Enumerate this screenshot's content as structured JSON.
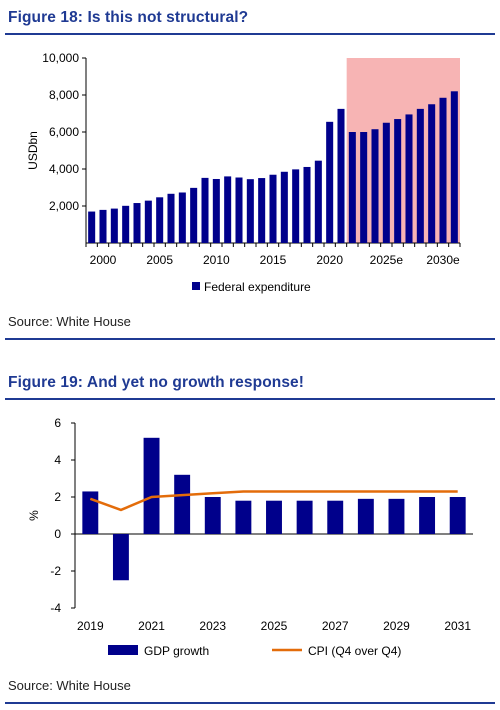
{
  "figure18": {
    "title": "Figure 18: Is this not structural?",
    "source": "Source: White House",
    "chart_data": {
      "type": "bar",
      "ylabel": "USDbn",
      "ylim": [
        0,
        10000
      ],
      "yticks": [
        2000,
        4000,
        6000,
        8000,
        10000
      ],
      "ytick_labels": [
        "2,000",
        "4,000",
        "6,000",
        "8,000",
        "10,000"
      ],
      "x": [
        1999,
        2000,
        2001,
        2002,
        2003,
        2004,
        2005,
        2006,
        2007,
        2008,
        2009,
        2010,
        2011,
        2012,
        2013,
        2014,
        2015,
        2016,
        2017,
        2018,
        2019,
        2020,
        2021,
        2022,
        2023,
        2024,
        2025,
        2026,
        2027,
        2028,
        2029,
        2030,
        2031
      ],
      "values": [
        1700,
        1790,
        1860,
        2010,
        2160,
        2290,
        2470,
        2660,
        2730,
        2980,
        3520,
        3460,
        3600,
        3540,
        3450,
        3510,
        3690,
        3850,
        3980,
        4110,
        4450,
        6550,
        7250,
        6000,
        6000,
        6150,
        6500,
        6700,
        6950,
        7250,
        7500,
        7850,
        8200
      ],
      "xtick_labels": [
        "2000",
        "2005",
        "2010",
        "2015",
        "2020",
        "2025e",
        "2030e"
      ],
      "xtick_years": [
        2000,
        2005,
        2010,
        2015,
        2020,
        2025,
        2030
      ],
      "legend": [
        "Federal expenditure"
      ],
      "legend_position": "bottom",
      "shaded_region": {
        "from_year": 2022,
        "to_year": 2031
      },
      "colors": {
        "bar": "#00008b",
        "shade": "#f7b4b4"
      }
    }
  },
  "figure19": {
    "title": "Figure 19: And yet no growth response!",
    "source": "Source: White House",
    "chart_data": {
      "type": "bar",
      "ylabel": "%",
      "ylim": [
        -4,
        6
      ],
      "yticks": [
        -4,
        -2,
        0,
        2,
        4,
        6
      ],
      "ytick_labels": [
        "-4",
        "-2",
        "0",
        "2",
        "4",
        "6"
      ],
      "x": [
        2019,
        2020,
        2021,
        2022,
        2023,
        2024,
        2025,
        2026,
        2027,
        2028,
        2029,
        2030,
        2031
      ],
      "xtick_labels": [
        "2019",
        "2021",
        "2023",
        "2025",
        "2027",
        "2029",
        "2031"
      ],
      "xtick_years": [
        2019,
        2021,
        2023,
        2025,
        2027,
        2029,
        2031
      ],
      "series": [
        {
          "name": "GDP growth",
          "kind": "bar",
          "values": [
            2.3,
            -2.5,
            5.2,
            3.2,
            2.0,
            1.8,
            1.8,
            1.8,
            1.8,
            1.9,
            1.9,
            2.0,
            2.0
          ]
        },
        {
          "name": "CPI (Q4 over Q4)",
          "kind": "line",
          "values": [
            1.9,
            1.3,
            2.0,
            2.1,
            2.2,
            2.3,
            2.3,
            2.3,
            2.3,
            2.3,
            2.3,
            2.3,
            2.3
          ]
        }
      ],
      "legend_position": "bottom",
      "colors": {
        "bar": "#00008b",
        "line": "#e36c0a"
      }
    }
  }
}
